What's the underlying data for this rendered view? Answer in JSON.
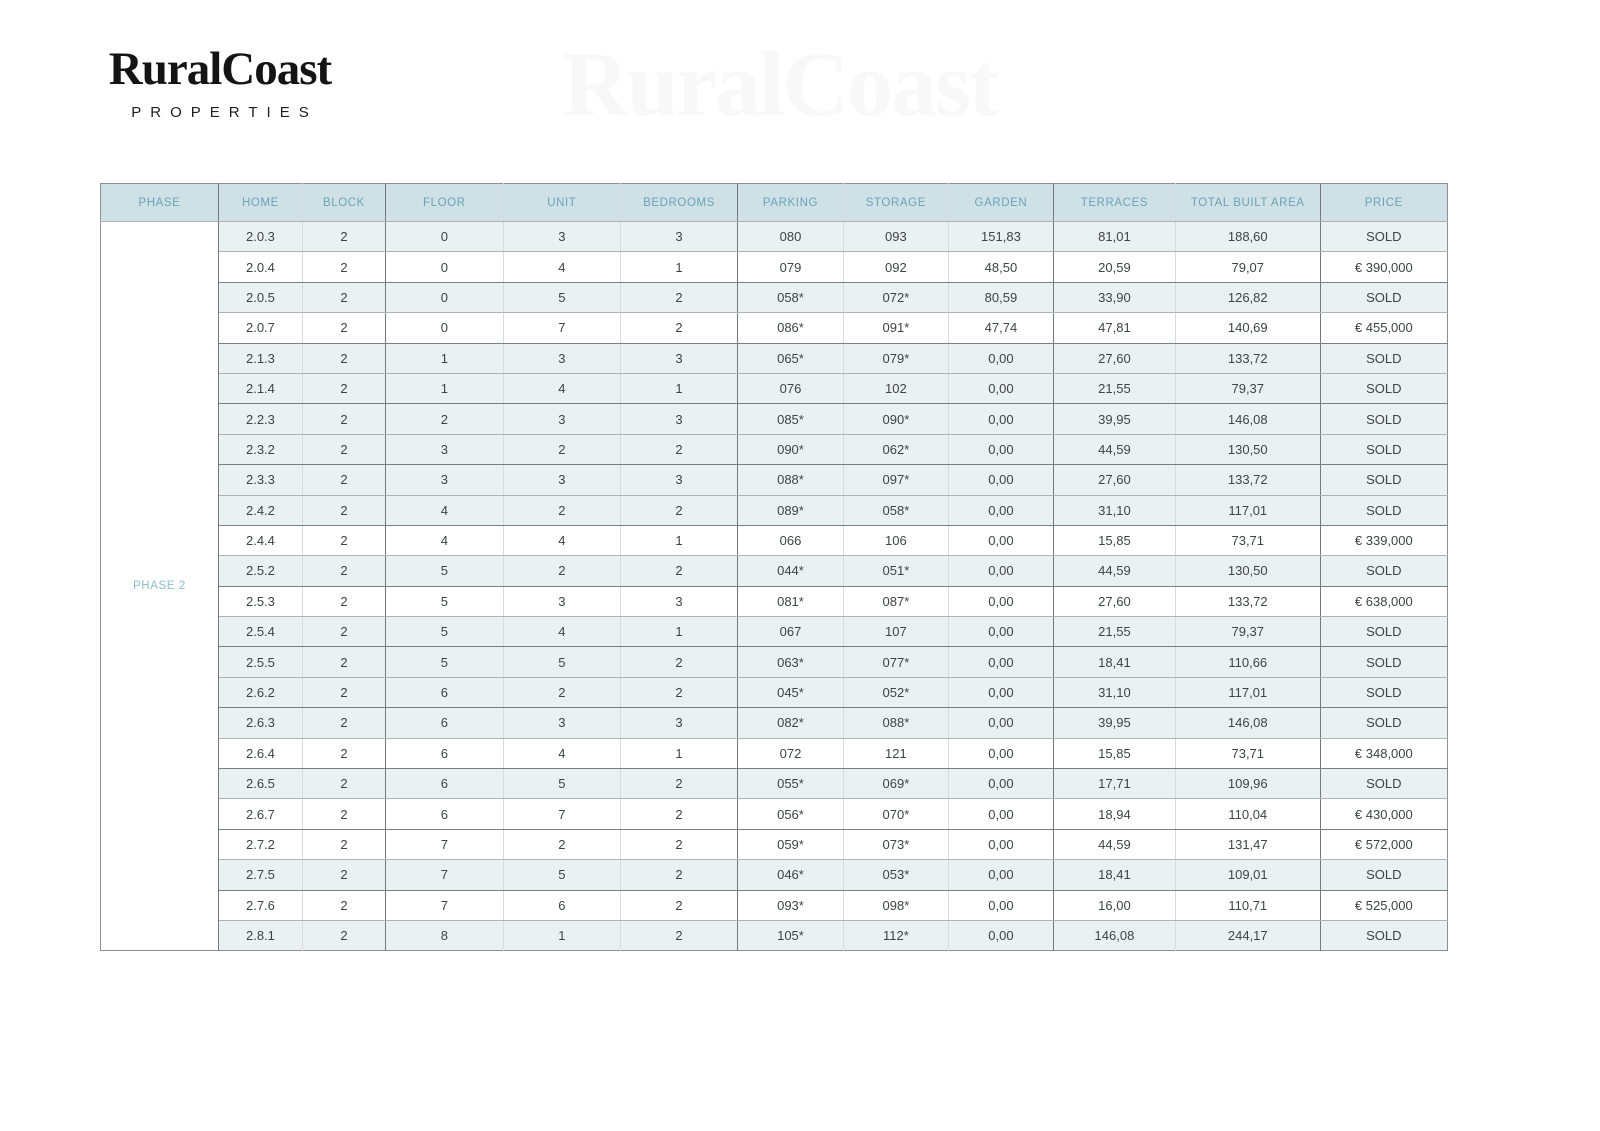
{
  "logo": {
    "brand": "RuralCoast",
    "tagline": "PROPERTIES"
  },
  "watermark": {
    "brand": "RuralCoast",
    "tagline": "PROPERTIES"
  },
  "table": {
    "phase_label": "PHASE 2",
    "columns": [
      "PHASE",
      "HOME",
      "BLOCK",
      "FLOOR",
      "UNIT",
      "BEDROOMS",
      "PARKING",
      "STORAGE",
      "GARDEN",
      "TERRACES",
      "TOTAL BUILT AREA",
      "PRICE"
    ],
    "sold_label": "SOLD",
    "rows": [
      [
        "2.0.3",
        "2",
        "0",
        "3",
        "3",
        "080",
        "093",
        "151,83",
        "81,01",
        "188,60",
        "SOLD"
      ],
      [
        "2.0.4",
        "2",
        "0",
        "4",
        "1",
        "079",
        "092",
        "48,50",
        "20,59",
        "79,07",
        "€ 390,000"
      ],
      [
        "2.0.5",
        "2",
        "0",
        "5",
        "2",
        "058*",
        "072*",
        "80,59",
        "33,90",
        "126,82",
        "SOLD"
      ],
      [
        "2.0.7",
        "2",
        "0",
        "7",
        "2",
        "086*",
        "091*",
        "47,74",
        "47,81",
        "140,69",
        "€ 455,000"
      ],
      [
        "2.1.3",
        "2",
        "1",
        "3",
        "3",
        "065*",
        "079*",
        "0,00",
        "27,60",
        "133,72",
        "SOLD"
      ],
      [
        "2.1.4",
        "2",
        "1",
        "4",
        "1",
        "076",
        "102",
        "0,00",
        "21,55",
        "79,37",
        "SOLD"
      ],
      [
        "2.2.3",
        "2",
        "2",
        "3",
        "3",
        "085*",
        "090*",
        "0,00",
        "39,95",
        "146,08",
        "SOLD"
      ],
      [
        "2.3.2",
        "2",
        "3",
        "2",
        "2",
        "090*",
        "062*",
        "0,00",
        "44,59",
        "130,50",
        "SOLD"
      ],
      [
        "2.3.3",
        "2",
        "3",
        "3",
        "3",
        "088*",
        "097*",
        "0,00",
        "27,60",
        "133,72",
        "SOLD"
      ],
      [
        "2.4.2",
        "2",
        "4",
        "2",
        "2",
        "089*",
        "058*",
        "0,00",
        "31,10",
        "117,01",
        "SOLD"
      ],
      [
        "2.4.4",
        "2",
        "4",
        "4",
        "1",
        "066",
        "106",
        "0,00",
        "15,85",
        "73,71",
        "€ 339,000"
      ],
      [
        "2.5.2",
        "2",
        "5",
        "2",
        "2",
        "044*",
        "051*",
        "0,00",
        "44,59",
        "130,50",
        "SOLD"
      ],
      [
        "2.5.3",
        "2",
        "5",
        "3",
        "3",
        "081*",
        "087*",
        "0,00",
        "27,60",
        "133,72",
        "€ 638,000"
      ],
      [
        "2.5.4",
        "2",
        "5",
        "4",
        "1",
        "067",
        "107",
        "0,00",
        "21,55",
        "79,37",
        "SOLD"
      ],
      [
        "2.5.5",
        "2",
        "5",
        "5",
        "2",
        "063*",
        "077*",
        "0,00",
        "18,41",
        "110,66",
        "SOLD"
      ],
      [
        "2.6.2",
        "2",
        "6",
        "2",
        "2",
        "045*",
        "052*",
        "0,00",
        "31,10",
        "117,01",
        "SOLD"
      ],
      [
        "2.6.3",
        "2",
        "6",
        "3",
        "3",
        "082*",
        "088*",
        "0,00",
        "39,95",
        "146,08",
        "SOLD"
      ],
      [
        "2.6.4",
        "2",
        "6",
        "4",
        "1",
        "072",
        "121",
        "0,00",
        "15,85",
        "73,71",
        "€ 348,000"
      ],
      [
        "2.6.5",
        "2",
        "6",
        "5",
        "2",
        "055*",
        "069*",
        "0,00",
        "17,71",
        "109,96",
        "SOLD"
      ],
      [
        "2.6.7",
        "2",
        "6",
        "7",
        "2",
        "056*",
        "070*",
        "0,00",
        "18,94",
        "110,04",
        "€ 430,000"
      ],
      [
        "2.7.2",
        "2",
        "7",
        "2",
        "2",
        "059*",
        "073*",
        "0,00",
        "44,59",
        "131,47",
        "€ 572,000"
      ],
      [
        "2.7.5",
        "2",
        "7",
        "5",
        "2",
        "046*",
        "053*",
        "0,00",
        "18,41",
        "109,01",
        "SOLD"
      ],
      [
        "2.7.6",
        "2",
        "7",
        "6",
        "2",
        "093*",
        "098*",
        "0,00",
        "16,00",
        "110,71",
        "€ 525,000"
      ],
      [
        "2.8.1",
        "2",
        "8",
        "1",
        "2",
        "105*",
        "112*",
        "0,00",
        "146,08",
        "244,17",
        "SOLD"
      ]
    ]
  },
  "colors": {
    "header_bg": "#cfe0e6",
    "header_text": "#69a5b6",
    "sold_row_bg": "#eaf1f2",
    "available_row_bg": "#ffffff",
    "phase_label_text": "#8cbcc9",
    "cell_text": "#3f4345"
  }
}
